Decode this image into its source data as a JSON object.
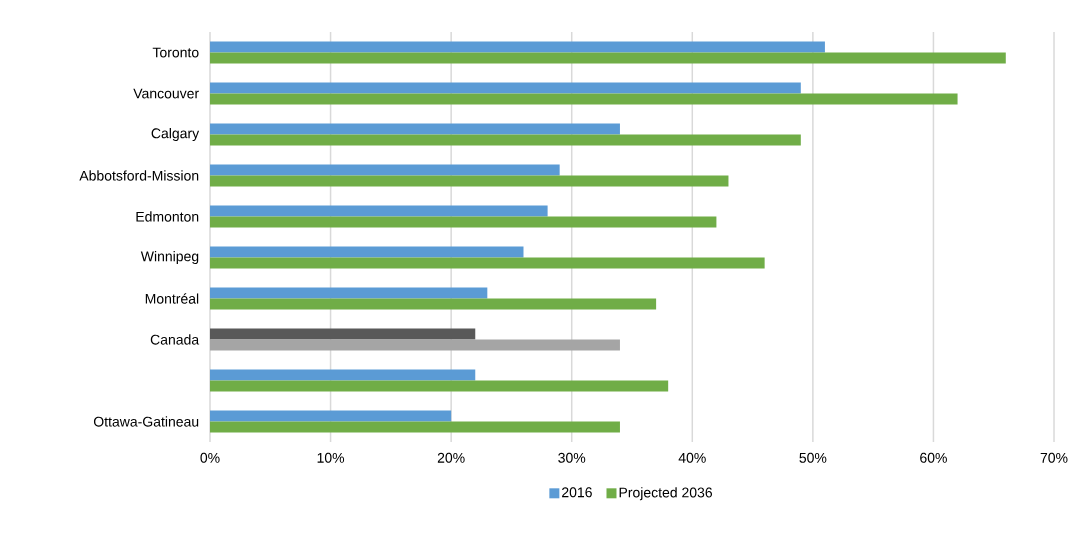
{
  "chart_data": {
    "type": "bar",
    "orientation": "horizontal",
    "categories": [
      "Toronto",
      "Vancouver",
      "Calgary",
      "Abbotsford-Mission",
      "Edmonton",
      "Winnipeg",
      "Montréal",
      "Canada",
      null,
      "Ottawa-Gatineau"
    ],
    "series": [
      {
        "name": "2016",
        "color": "#5b9bd5",
        "colors": [
          "#5b9bd5",
          "#5b9bd5",
          "#5b9bd5",
          "#5b9bd5",
          "#5b9bd5",
          "#5b9bd5",
          "#5b9bd5",
          "#595959",
          "#5b9bd5",
          "#5b9bd5"
        ],
        "values": [
          51,
          49,
          34,
          29,
          28,
          26,
          23,
          22,
          22,
          20
        ]
      },
      {
        "name": "Projected 2036",
        "color": "#70ad47",
        "colors": [
          "#70ad47",
          "#70ad47",
          "#70ad47",
          "#70ad47",
          "#70ad47",
          "#70ad47",
          "#70ad47",
          "#a5a5a5",
          "#70ad47",
          "#70ad47"
        ],
        "values": [
          66,
          62,
          49,
          43,
          42,
          46,
          37,
          34,
          38,
          34
        ]
      }
    ],
    "xlim": [
      0,
      70
    ],
    "xticks": [
      {
        "value": 0,
        "label": "0%"
      },
      {
        "value": 10,
        "label": "10%"
      },
      {
        "value": 20,
        "label": "20%"
      },
      {
        "value": 30,
        "label": "30%"
      },
      {
        "value": 40,
        "label": "40%"
      },
      {
        "value": 50,
        "label": "50%"
      },
      {
        "value": 60,
        "label": "60%"
      },
      {
        "value": 70,
        "label": "70%"
      }
    ],
    "grid": "x",
    "legend": "bottom"
  }
}
